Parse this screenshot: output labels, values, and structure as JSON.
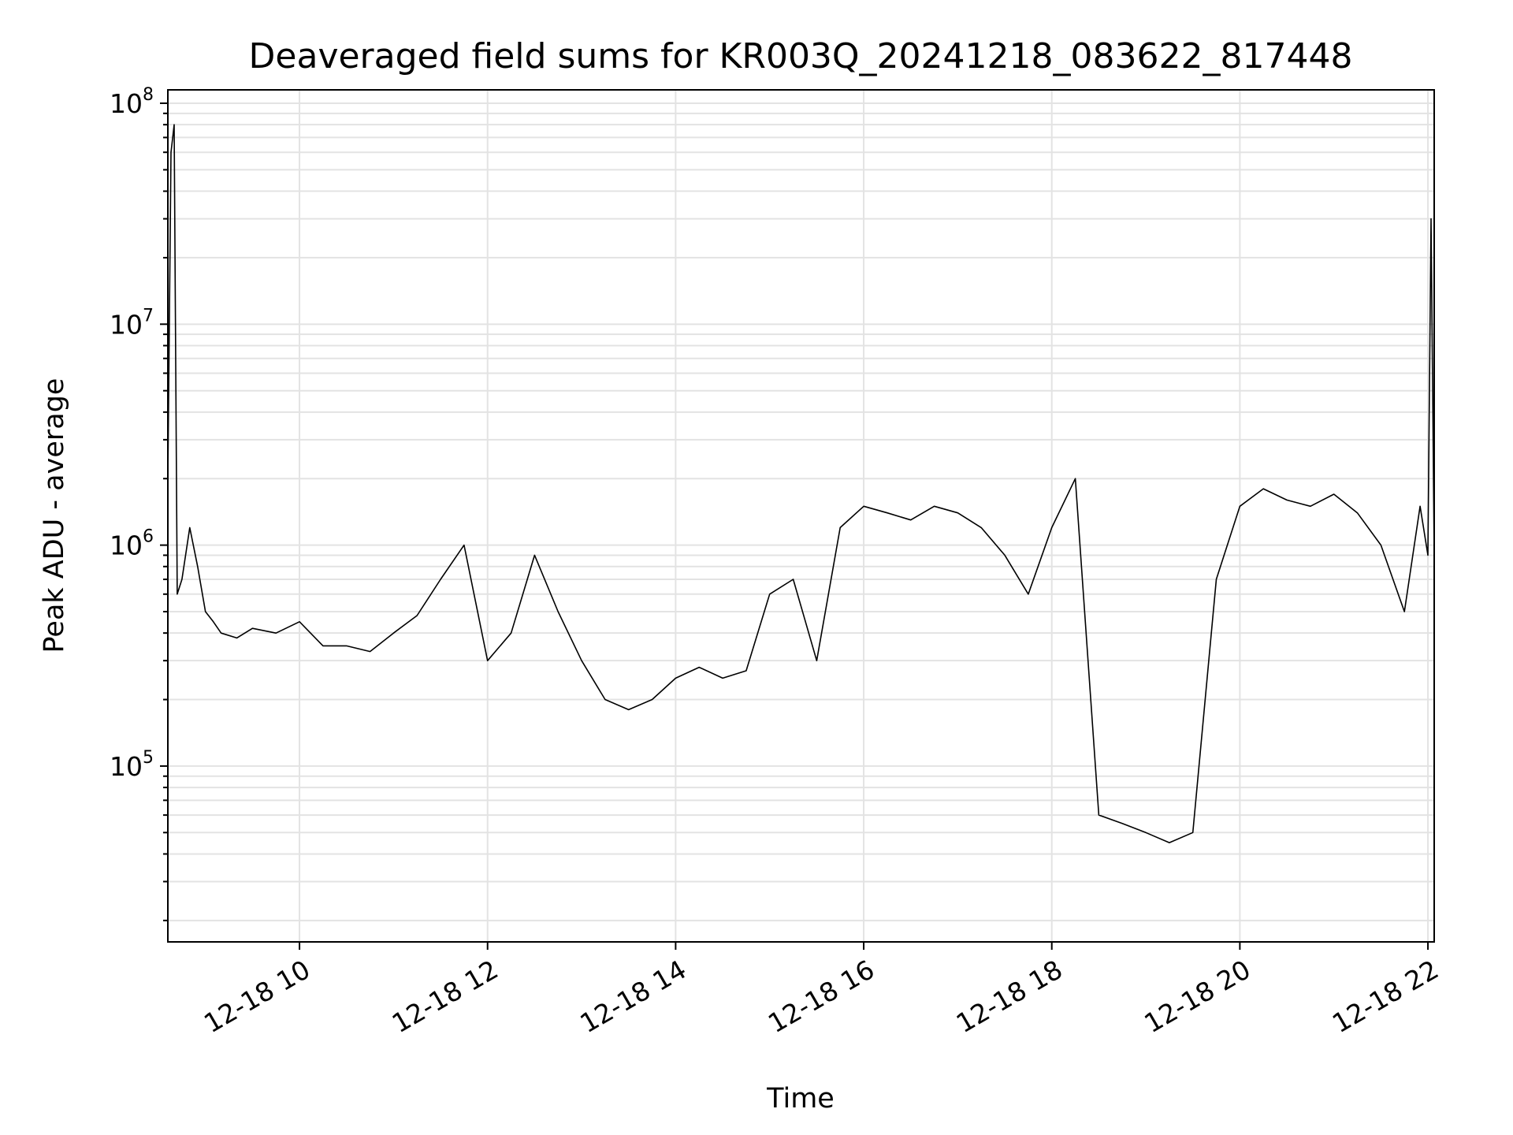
{
  "chart_data": {
    "type": "line",
    "title": "Deaveraged field sums for KR003Q_20241218_083622_817448",
    "xlabel": "Time",
    "ylabel": "Peak ADU - average",
    "yscale": "log",
    "ylim": [
      16000,
      115000000
    ],
    "xlim": [
      "2024-12-18 08:36",
      "2024-12-18 22:04"
    ],
    "grid": true,
    "line_color": "#000000",
    "grid_color": "#e3e3e3",
    "x_ticks": [
      {
        "value": "2024-12-18 10:00",
        "label": "12-18 10"
      },
      {
        "value": "2024-12-18 12:00",
        "label": "12-18 12"
      },
      {
        "value": "2024-12-18 14:00",
        "label": "12-18 14"
      },
      {
        "value": "2024-12-18 16:00",
        "label": "12-18 16"
      },
      {
        "value": "2024-12-18 18:00",
        "label": "12-18 18"
      },
      {
        "value": "2024-12-18 20:00",
        "label": "12-18 20"
      },
      {
        "value": "2024-12-18 22:00",
        "label": "12-18 22"
      }
    ],
    "y_ticks": [
      {
        "value": 100000,
        "base": "10",
        "exp": "5"
      },
      {
        "value": 1000000,
        "base": "10",
        "exp": "6"
      },
      {
        "value": 10000000,
        "base": "10",
        "exp": "7"
      },
      {
        "value": 100000000,
        "base": "10",
        "exp": "8"
      }
    ],
    "series": [
      {
        "x": [
          "2024-12-18 08:36",
          "2024-12-18 08:38",
          "2024-12-18 08:40",
          "2024-12-18 08:42",
          "2024-12-18 08:45",
          "2024-12-18 08:50",
          "2024-12-18 08:55",
          "2024-12-18 09:00",
          "2024-12-18 09:05",
          "2024-12-18 09:10",
          "2024-12-18 09:20",
          "2024-12-18 09:30",
          "2024-12-18 09:45",
          "2024-12-18 10:00",
          "2024-12-18 10:15",
          "2024-12-18 10:30",
          "2024-12-18 10:45",
          "2024-12-18 11:00",
          "2024-12-18 11:15",
          "2024-12-18 11:30",
          "2024-12-18 11:45",
          "2024-12-18 12:00",
          "2024-12-18 12:15",
          "2024-12-18 12:30",
          "2024-12-18 12:45",
          "2024-12-18 13:00",
          "2024-12-18 13:15",
          "2024-12-18 13:30",
          "2024-12-18 13:45",
          "2024-12-18 14:00",
          "2024-12-18 14:15",
          "2024-12-18 14:30",
          "2024-12-18 14:45",
          "2024-12-18 15:00",
          "2024-12-18 15:15",
          "2024-12-18 15:30",
          "2024-12-18 15:45",
          "2024-12-18 16:00",
          "2024-12-18 16:15",
          "2024-12-18 16:30",
          "2024-12-18 16:45",
          "2024-12-18 17:00",
          "2024-12-18 17:15",
          "2024-12-18 17:30",
          "2024-12-18 17:45",
          "2024-12-18 18:00",
          "2024-12-18 18:15",
          "2024-12-18 18:30",
          "2024-12-18 18:45",
          "2024-12-18 19:00",
          "2024-12-18 19:15",
          "2024-12-18 19:30",
          "2024-12-18 19:45",
          "2024-12-18 20:00",
          "2024-12-18 20:15",
          "2024-12-18 20:30",
          "2024-12-18 20:45",
          "2024-12-18 21:00",
          "2024-12-18 21:15",
          "2024-12-18 21:30",
          "2024-12-18 21:45",
          "2024-12-18 21:55",
          "2024-12-18 22:00",
          "2024-12-18 22:02",
          "2024-12-18 22:04"
        ],
        "y": [
          2000000,
          60000000,
          80000000,
          600000,
          700000,
          1200000,
          800000,
          500000,
          450000,
          400000,
          380000,
          420000,
          400000,
          450000,
          350000,
          350000,
          330000,
          400000,
          480000,
          700000,
          1000000,
          300000,
          400000,
          900000,
          500000,
          300000,
          200000,
          180000,
          200000,
          250000,
          280000,
          250000,
          270000,
          600000,
          700000,
          300000,
          1200000,
          1500000,
          1400000,
          1300000,
          1500000,
          1400000,
          1200000,
          900000,
          600000,
          1200000,
          2000000,
          60000,
          55000,
          50000,
          45000,
          50000,
          700000,
          1500000,
          1800000,
          1600000,
          1500000,
          1700000,
          1400000,
          1000000,
          500000,
          1500000,
          900000,
          30000000,
          900000
        ]
      }
    ]
  }
}
